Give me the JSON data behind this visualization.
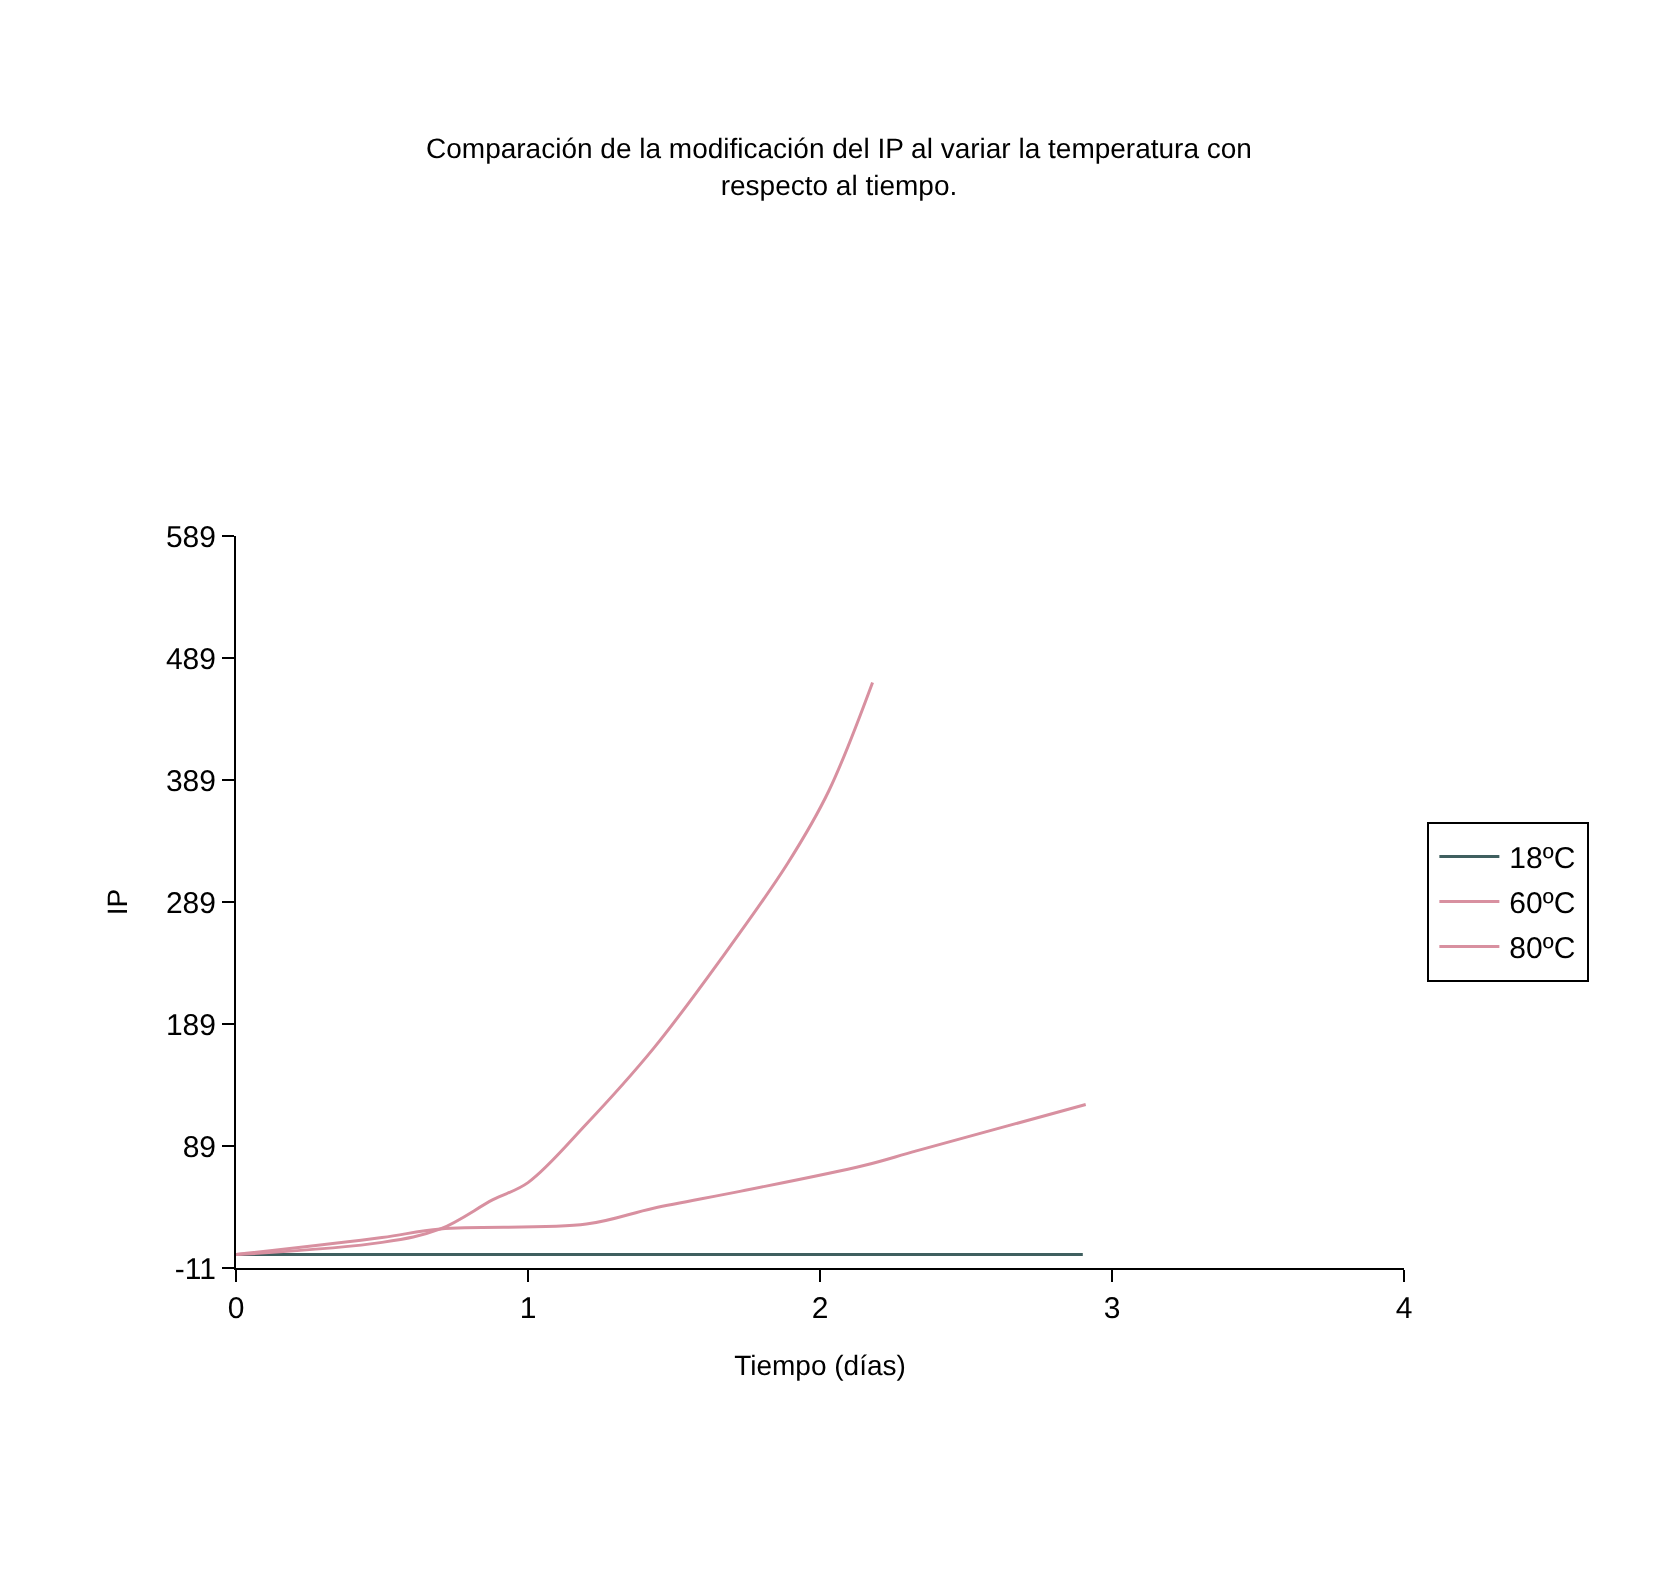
{
  "chart_data": {
    "type": "line",
    "title": "Comparación de la modificación del IP al variar la temperatura con respecto al tiempo.",
    "xlabel": "Tiempo (días)",
    "ylabel": "IP",
    "xlim": [
      0,
      4
    ],
    "xticks": [
      0,
      1,
      2,
      3,
      4
    ],
    "ylim": [
      -11,
      589
    ],
    "yticks": [
      -11,
      89,
      189,
      289,
      389,
      489,
      589
    ],
    "legend": "right",
    "marker": "none",
    "line_style": "solid",
    "series": [
      {
        "name": "18ºC",
        "color": "#3f5f5f",
        "x": [
          0,
          0.5,
          1,
          1.5,
          2,
          2.5,
          2.9
        ],
        "values": [
          0,
          0,
          0,
          0,
          0,
          0,
          0
        ]
      },
      {
        "name": "60ºC",
        "color": "#d890a0",
        "x": [
          0,
          0.5,
          0.7,
          1.2,
          1.43,
          1.73,
          2.15,
          2.33,
          2.91
        ],
        "values": [
          0,
          14,
          21,
          25,
          38,
          52,
          73,
          85,
          123
        ]
      },
      {
        "name": "80ºC",
        "color": "#d890a0",
        "x": [
          0,
          0.5,
          0.7,
          0.88,
          1.0,
          1.2,
          1.43,
          1.66,
          1.89,
          2.03,
          2.18
        ],
        "values": [
          0,
          10,
          21,
          45,
          59,
          107,
          169,
          242,
          321,
          380,
          469
        ]
      }
    ]
  }
}
